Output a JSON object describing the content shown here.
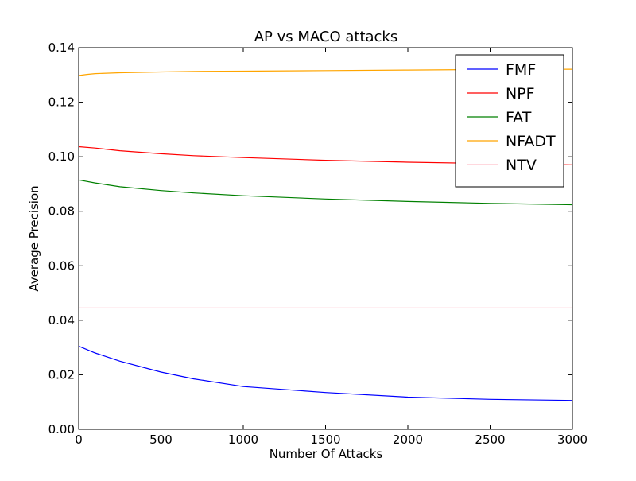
{
  "chart_data": {
    "type": "line",
    "title": "AP vs MACO attacks",
    "xlabel": "Number Of Attacks",
    "ylabel": "Average Precision",
    "xlim": [
      0,
      3000
    ],
    "ylim": [
      0.0,
      0.14
    ],
    "xticks": [
      {
        "value": 0,
        "label": "0"
      },
      {
        "value": 500,
        "label": "500"
      },
      {
        "value": 1000,
        "label": "1000"
      },
      {
        "value": 1500,
        "label": "1500"
      },
      {
        "value": 2000,
        "label": "2000"
      },
      {
        "value": 2500,
        "label": "2500"
      },
      {
        "value": 3000,
        "label": "3000"
      }
    ],
    "yticks": [
      {
        "value": 0.0,
        "label": "0.00"
      },
      {
        "value": 0.02,
        "label": "0.02"
      },
      {
        "value": 0.04,
        "label": "0.04"
      },
      {
        "value": 0.06,
        "label": "0.06"
      },
      {
        "value": 0.08,
        "label": "0.08"
      },
      {
        "value": 0.1,
        "label": "0.10"
      },
      {
        "value": 0.12,
        "label": "0.12"
      },
      {
        "value": 0.14,
        "label": "0.14"
      }
    ],
    "grid": false,
    "legend_position": "top-right",
    "series": [
      {
        "name": "FMF",
        "color": "#0000ff",
        "x": [
          0,
          100,
          250,
          500,
          700,
          1000,
          1500,
          2000,
          2500,
          3000
        ],
        "y": [
          0.0305,
          0.028,
          0.025,
          0.021,
          0.0185,
          0.0157,
          0.0135,
          0.0118,
          0.011,
          0.0106
        ]
      },
      {
        "name": "NPF",
        "color": "#ff0000",
        "x": [
          0,
          100,
          250,
          500,
          700,
          1000,
          1500,
          2000,
          2500,
          3000
        ],
        "y": [
          0.1037,
          0.1032,
          0.1022,
          0.1011,
          0.1004,
          0.0997,
          0.0987,
          0.098,
          0.0975,
          0.097
        ]
      },
      {
        "name": "FAT",
        "color": "#008000",
        "x": [
          0,
          100,
          250,
          500,
          700,
          1000,
          1500,
          2000,
          2500,
          3000
        ],
        "y": [
          0.0915,
          0.0904,
          0.089,
          0.0876,
          0.0867,
          0.0857,
          0.0845,
          0.0836,
          0.0829,
          0.0824
        ]
      },
      {
        "name": "NFADT",
        "color": "#ffa500",
        "x": [
          0,
          50,
          100,
          250,
          500,
          700,
          1000,
          1500,
          2000,
          2500,
          3000
        ],
        "y": [
          0.1298,
          0.1302,
          0.1305,
          0.1308,
          0.1311,
          0.1313,
          0.1314,
          0.1316,
          0.1318,
          0.132,
          0.1321
        ]
      },
      {
        "name": "NTV",
        "color": "#ffc0cb",
        "x": [
          0,
          3000
        ],
        "y": [
          0.0445,
          0.0445
        ]
      }
    ]
  }
}
